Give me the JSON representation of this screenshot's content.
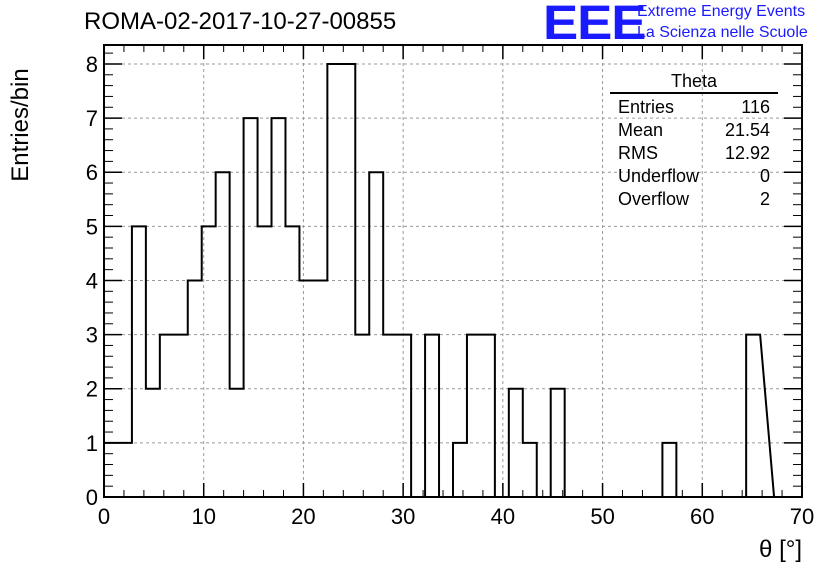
{
  "header": {
    "title": "ROMA-02-2017-10-27-00855",
    "logo_mark": "EEE",
    "logo_line1": "Extreme Energy Events",
    "logo_line2": "La Scienza nelle Scuole",
    "logo_color": "#1a1aff"
  },
  "stats": {
    "title": "Theta",
    "rows": [
      {
        "label": "Entries",
        "value": "116"
      },
      {
        "label": "Mean",
        "value": "21.54"
      },
      {
        "label": "RMS",
        "value": "12.92"
      },
      {
        "label": "Underflow",
        "value": "0"
      },
      {
        "label": "Overflow",
        "value": "2"
      }
    ]
  },
  "chart_data": {
    "type": "histogram",
    "xlabel": "θ [°]",
    "ylabel": "Entries/bin",
    "xlim": [
      0,
      70
    ],
    "ylim": [
      0,
      8.35
    ],
    "grid": true,
    "x_ticks": [
      0,
      10,
      20,
      30,
      40,
      50,
      60,
      70
    ],
    "y_ticks": [
      0,
      1,
      2,
      3,
      4,
      5,
      6,
      7,
      8
    ],
    "bin_edges": [
      0,
      1.4,
      2.8,
      4.2,
      5.6,
      7.0,
      8.4,
      9.8,
      11.2,
      12.6,
      14.0,
      15.4,
      16.8,
      18.2,
      19.6,
      21.0,
      22.4,
      23.8,
      25.2,
      26.6,
      28.0,
      29.4,
      30.8,
      32.2,
      33.6,
      35.0,
      36.4,
      37.8,
      39.2,
      40.6,
      42.0,
      43.4,
      44.8,
      46.2,
      47.6,
      49.0,
      50.4,
      51.8,
      53.2,
      54.6,
      56.0,
      57.4,
      58.8,
      60.2,
      61.6,
      63.0,
      64.4,
      65.8
    ],
    "values": [
      1,
      1,
      5,
      2,
      3,
      3,
      4,
      5,
      6,
      2,
      7,
      5,
      7,
      5,
      4,
      4,
      8,
      8,
      3,
      6,
      3,
      3,
      0,
      3,
      0,
      1,
      3,
      3,
      0,
      2,
      1,
      0,
      2,
      0,
      0,
      0,
      0,
      0,
      0,
      0,
      1,
      0,
      0,
      0,
      0,
      0,
      3
    ],
    "line_color": "#000000",
    "grid_color": "#9a9a9a"
  }
}
